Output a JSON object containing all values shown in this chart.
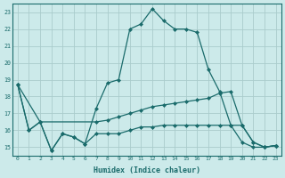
{
  "xlabel": "Humidex (Indice chaleur)",
  "bg_color": "#cceaea",
  "grid_color": "#b0d8d8",
  "line_color": "#1a6b6b",
  "xlim": [
    -0.5,
    23.5
  ],
  "ylim": [
    14.5,
    23.5
  ],
  "yticks": [
    15,
    16,
    17,
    18,
    19,
    20,
    21,
    22,
    23
  ],
  "xticks": [
    0,
    1,
    2,
    3,
    4,
    5,
    6,
    7,
    8,
    9,
    10,
    11,
    12,
    13,
    14,
    15,
    16,
    17,
    18,
    19,
    20,
    21,
    22,
    23
  ],
  "curve1_x": [
    0,
    1,
    2,
    3,
    4,
    5,
    6,
    7,
    8,
    9,
    10,
    11,
    12,
    13,
    14,
    15,
    16,
    17,
    18,
    19,
    20,
    21,
    22,
    23
  ],
  "curve1_y": [
    18.7,
    16.0,
    16.5,
    14.8,
    15.8,
    15.6,
    15.2,
    17.3,
    18.8,
    19.0,
    22.0,
    22.3,
    23.2,
    22.5,
    22.0,
    22.0,
    21.8,
    19.6,
    18.3,
    16.3,
    15.3,
    15.0,
    15.0,
    15.1
  ],
  "curve2_x": [
    0,
    2,
    7,
    8,
    9,
    10,
    11,
    12,
    13,
    14,
    15,
    16,
    17,
    18,
    19,
    20,
    21,
    22,
    23
  ],
  "curve2_y": [
    18.7,
    16.5,
    16.5,
    16.6,
    16.8,
    17.0,
    17.2,
    17.4,
    17.5,
    17.6,
    17.7,
    17.8,
    17.9,
    18.2,
    18.3,
    16.3,
    15.3,
    15.0,
    15.1
  ],
  "curve3_x": [
    0,
    1,
    2,
    3,
    4,
    5,
    6,
    7,
    8,
    9,
    10,
    11,
    12,
    13,
    14,
    15,
    16,
    17,
    18,
    19,
    20,
    21,
    22,
    23
  ],
  "curve3_y": [
    18.7,
    16.0,
    16.5,
    14.8,
    15.8,
    15.6,
    15.2,
    15.8,
    15.8,
    15.8,
    16.0,
    16.2,
    16.2,
    16.3,
    16.3,
    16.3,
    16.3,
    16.3,
    16.3,
    16.3,
    16.3,
    15.3,
    15.0,
    15.1
  ]
}
